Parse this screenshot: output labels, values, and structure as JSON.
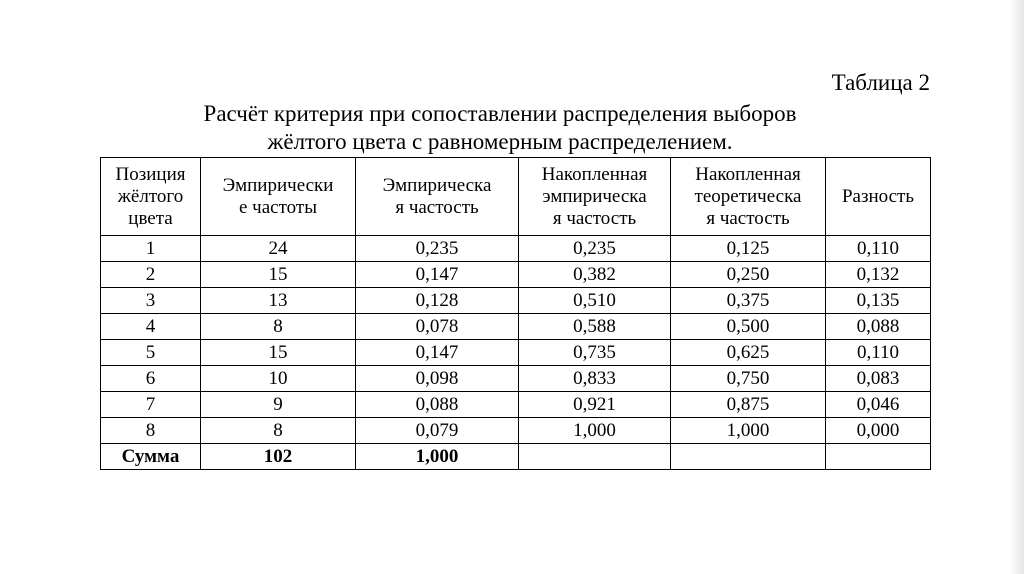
{
  "label": "Таблица 2",
  "title": [
    "Расчёт критерия при сопоставлении распределения выборов",
    "жёлтого цвета с равномерным распределением."
  ],
  "table": {
    "header": [
      [
        "Позиция",
        "жёлтого",
        "цвета"
      ],
      [
        "Эмпирически",
        "е частоты"
      ],
      [
        "Эмпирическа",
        "я частость"
      ],
      [
        "Накопленная",
        "эмпирическа",
        "я частость"
      ],
      [
        "Накопленная",
        "теоретическа",
        "я частость"
      ],
      [
        "Разность"
      ]
    ],
    "rows": [
      [
        "1",
        "24",
        "0,235",
        "0,235",
        "0,125",
        "0,110"
      ],
      [
        "2",
        "15",
        "0,147",
        "0,382",
        "0,250",
        "0,132"
      ],
      [
        "3",
        "13",
        "0,128",
        "0,510",
        "0,375",
        "0,135"
      ],
      [
        "4",
        "8",
        "0,078",
        "0,588",
        "0,500",
        "0,088"
      ],
      [
        "5",
        "15",
        "0,147",
        "0,735",
        "0,625",
        "0,110"
      ],
      [
        "6",
        "10",
        "0,098",
        "0,833",
        "0,750",
        "0,083"
      ],
      [
        "7",
        "9",
        "0,088",
        "0,921",
        "0,875",
        "0,046"
      ],
      [
        "8",
        "8",
        "0,079",
        "1,000",
        "1,000",
        "0,000"
      ]
    ],
    "total": [
      "Сумма",
      "102",
      "1,000"
    ]
  }
}
